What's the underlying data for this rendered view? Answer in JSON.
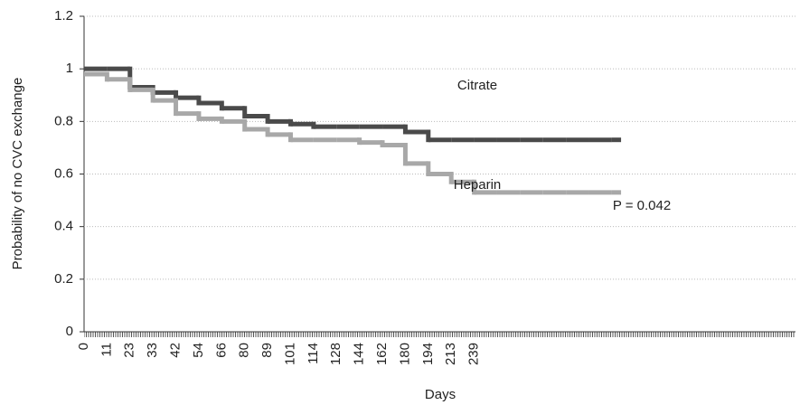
{
  "chart_data": {
    "type": "step",
    "y_label": "Probability of no CVC exchange",
    "x_label": "Days",
    "categories": [
      "0",
      "11",
      "23",
      "33",
      "42",
      "54",
      "66",
      "80",
      "89",
      "101",
      "114",
      "128",
      "144",
      "162",
      "180",
      "194",
      "213",
      "239",
      null,
      null,
      null,
      null,
      null,
      null,
      null,
      null,
      null,
      null,
      null,
      null,
      null,
      null
    ],
    "series": [
      {
        "name": "Citrate",
        "color": "#4a4a4a",
        "values": [
          1.0,
          1.0,
          0.93,
          0.91,
          0.89,
          0.87,
          0.85,
          0.82,
          0.8,
          0.79,
          0.78,
          0.78,
          0.78,
          0.78,
          0.76,
          0.73,
          0.73,
          0.73,
          0.73,
          0.73,
          0.73,
          0.73,
          0.73,
          0.73,
          null,
          null,
          null,
          null,
          null,
          null,
          null,
          null
        ]
      },
      {
        "name": "Heparin",
        "color": "#a8a8a8",
        "values": [
          0.98,
          0.96,
          0.92,
          0.88,
          0.83,
          0.81,
          0.8,
          0.77,
          0.75,
          0.73,
          0.73,
          0.73,
          0.72,
          0.71,
          0.64,
          0.6,
          0.57,
          0.53,
          0.53,
          0.53,
          0.53,
          0.53,
          0.53,
          0.53,
          null,
          null,
          null,
          null,
          null,
          null,
          null,
          null
        ]
      }
    ],
    "annotation": "P = 0.042",
    "ylim": [
      0,
      1.2
    ],
    "yticks": [
      0,
      0.2,
      0.4,
      0.6,
      0.8,
      1,
      1.2
    ],
    "grid": true
  }
}
